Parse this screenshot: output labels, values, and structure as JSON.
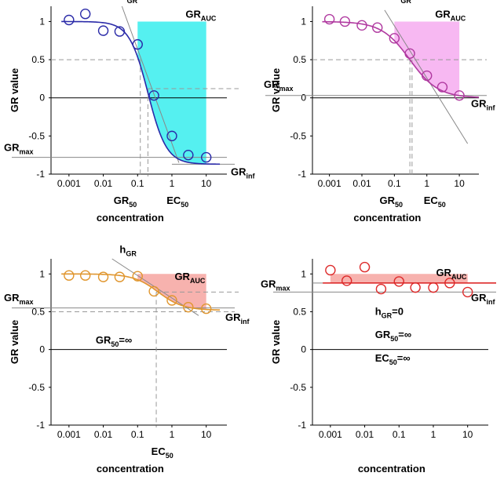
{
  "chart_data": [
    {
      "type": "scatter",
      "xscale": "log",
      "xlabel": "concentration",
      "ylabel": "GR value",
      "xticks": [
        "0.001",
        "0.01",
        "0.1",
        "1",
        "10"
      ],
      "yticks": [
        "1",
        "0.5",
        "0",
        "-0.5",
        "-1"
      ],
      "xlim": [
        0.0003,
        40
      ],
      "ylim": [
        -1,
        1.2
      ],
      "color": "#2a2aa8",
      "fill_color": "#55f0f0",
      "points": [
        {
          "x": 0.001,
          "y": 1.02
        },
        {
          "x": 0.003,
          "y": 1.1
        },
        {
          "x": 0.01,
          "y": 0.88
        },
        {
          "x": 0.03,
          "y": 0.87
        },
        {
          "x": 0.1,
          "y": 0.7
        },
        {
          "x": 0.3,
          "y": 0.03
        },
        {
          "x": 1,
          "y": -0.5
        },
        {
          "x": 3,
          "y": -0.75
        },
        {
          "x": 10,
          "y": -0.78
        }
      ],
      "fit": {
        "GRinf": -0.87,
        "GEC50": 0.2,
        "hGR": 1.6
      },
      "GR50": 0.12,
      "EC50": 0.2,
      "GRmax": -0.78,
      "labels": {
        "hgr": "h",
        "hgr_sub": "GR",
        "auc": "GR",
        "auc_sub": "AUC",
        "grmax": "GR",
        "grmax_sub": "max",
        "grinf": "GR",
        "grinf_sub": "inf",
        "gr50": "GR",
        "gr50_sub": "50",
        "ec50": "EC",
        "ec50_sub": "50"
      }
    },
    {
      "type": "scatter",
      "xscale": "log",
      "xlabel": "concentration",
      "ylabel": "GR value",
      "xticks": [
        "0.001",
        "0.01",
        "0.1",
        "1",
        "10"
      ],
      "yticks": [
        "1",
        "0.5",
        "0",
        "-0.5",
        "-1"
      ],
      "xlim": [
        0.0003,
        40
      ],
      "ylim": [
        -1,
        1.2
      ],
      "color": "#b03aa0",
      "fill_color": "#f7b8f2",
      "points": [
        {
          "x": 0.001,
          "y": 1.03
        },
        {
          "x": 0.003,
          "y": 1.0
        },
        {
          "x": 0.01,
          "y": 0.95
        },
        {
          "x": 0.03,
          "y": 0.92
        },
        {
          "x": 0.1,
          "y": 0.78
        },
        {
          "x": 0.3,
          "y": 0.58
        },
        {
          "x": 1,
          "y": 0.29
        },
        {
          "x": 3,
          "y": 0.14
        },
        {
          "x": 10,
          "y": 0.03
        }
      ],
      "fit": {
        "GRinf": 0.0,
        "GEC50": 0.3,
        "hGR": 1.0
      },
      "GR50": 0.3,
      "EC50": 0.35,
      "GRmax": 0.03,
      "labels": {
        "hgr": "h",
        "hgr_sub": "GR",
        "auc": "GR",
        "auc_sub": "AUC",
        "grmax": "GR",
        "grmax_sub": "max",
        "grinf": "GR",
        "grinf_sub": "inf",
        "gr50": "GR",
        "gr50_sub": "50",
        "ec50": "EC",
        "ec50_sub": "50"
      }
    },
    {
      "type": "scatter",
      "xscale": "log",
      "xlabel": "concentration",
      "ylabel": "GR value",
      "xticks": [
        "0.001",
        "0.01",
        "0.1",
        "1",
        "10"
      ],
      "yticks": [
        "1",
        "0.5",
        "0",
        "-0.5",
        "-1"
      ],
      "xlim": [
        0.0003,
        40
      ],
      "ylim": [
        -1,
        1.2
      ],
      "color": "#e0962e",
      "fill_color": "#f7b2ae",
      "points": [
        {
          "x": 0.001,
          "y": 0.98
        },
        {
          "x": 0.003,
          "y": 0.98
        },
        {
          "x": 0.01,
          "y": 0.96
        },
        {
          "x": 0.03,
          "y": 0.96
        },
        {
          "x": 0.1,
          "y": 0.97
        },
        {
          "x": 0.3,
          "y": 0.77
        },
        {
          "x": 1,
          "y": 0.65
        },
        {
          "x": 3,
          "y": 0.56
        },
        {
          "x": 10,
          "y": 0.54
        }
      ],
      "fit": {
        "GRinf": 0.52,
        "GEC50": 0.4,
        "hGR": 1.2
      },
      "GR50": "inf",
      "EC50": 0.35,
      "GRmax": 0.55,
      "labels": {
        "hgr": "h",
        "hgr_sub": "GR",
        "auc": "GR",
        "auc_sub": "AUC",
        "grmax": "GR",
        "grmax_sub": "max",
        "grinf": "GR",
        "grinf_sub": "inf",
        "gr50_inf": "GR",
        "gr50_inf_sub": "50",
        "gr50_inf_tail": "=∞",
        "ec50": "EC",
        "ec50_sub": "50"
      }
    },
    {
      "type": "scatter",
      "xscale": "log",
      "xlabel": "concentration",
      "ylabel": "GR value",
      "xticks": [
        "0.001",
        "0.01",
        "0.1",
        "1",
        "10"
      ],
      "yticks": [
        "1",
        "0.5",
        "0",
        "-0.5",
        "-1"
      ],
      "xlim": [
        0.0003,
        40
      ],
      "ylim": [
        -1,
        1.2
      ],
      "color": "#dd2a2a",
      "fill_color": "#f7b2ae",
      "points": [
        {
          "x": 0.001,
          "y": 1.05
        },
        {
          "x": 0.003,
          "y": 0.91
        },
        {
          "x": 0.01,
          "y": 1.09
        },
        {
          "x": 0.03,
          "y": 0.8
        },
        {
          "x": 0.1,
          "y": 0.9
        },
        {
          "x": 0.3,
          "y": 0.82
        },
        {
          "x": 1,
          "y": 0.82
        },
        {
          "x": 3,
          "y": 0.88
        },
        {
          "x": 10,
          "y": 0.76
        }
      ],
      "flat": 0.88,
      "GRmax": 0.76,
      "labels": {
        "auc": "GR",
        "auc_sub": "AUC",
        "grmax": "GR",
        "grmax_sub": "max",
        "grinf": "GR",
        "grinf_sub": "inf",
        "h0": "h",
        "h0_sub": "GR",
        "h0_tail": "=0",
        "gr50_inf": "GR",
        "gr50_inf_sub": "50",
        "gr50_inf_tail": "=∞",
        "ec50_inf": "EC",
        "ec50_inf_sub": "50",
        "ec50_inf_tail": "=∞"
      }
    }
  ]
}
